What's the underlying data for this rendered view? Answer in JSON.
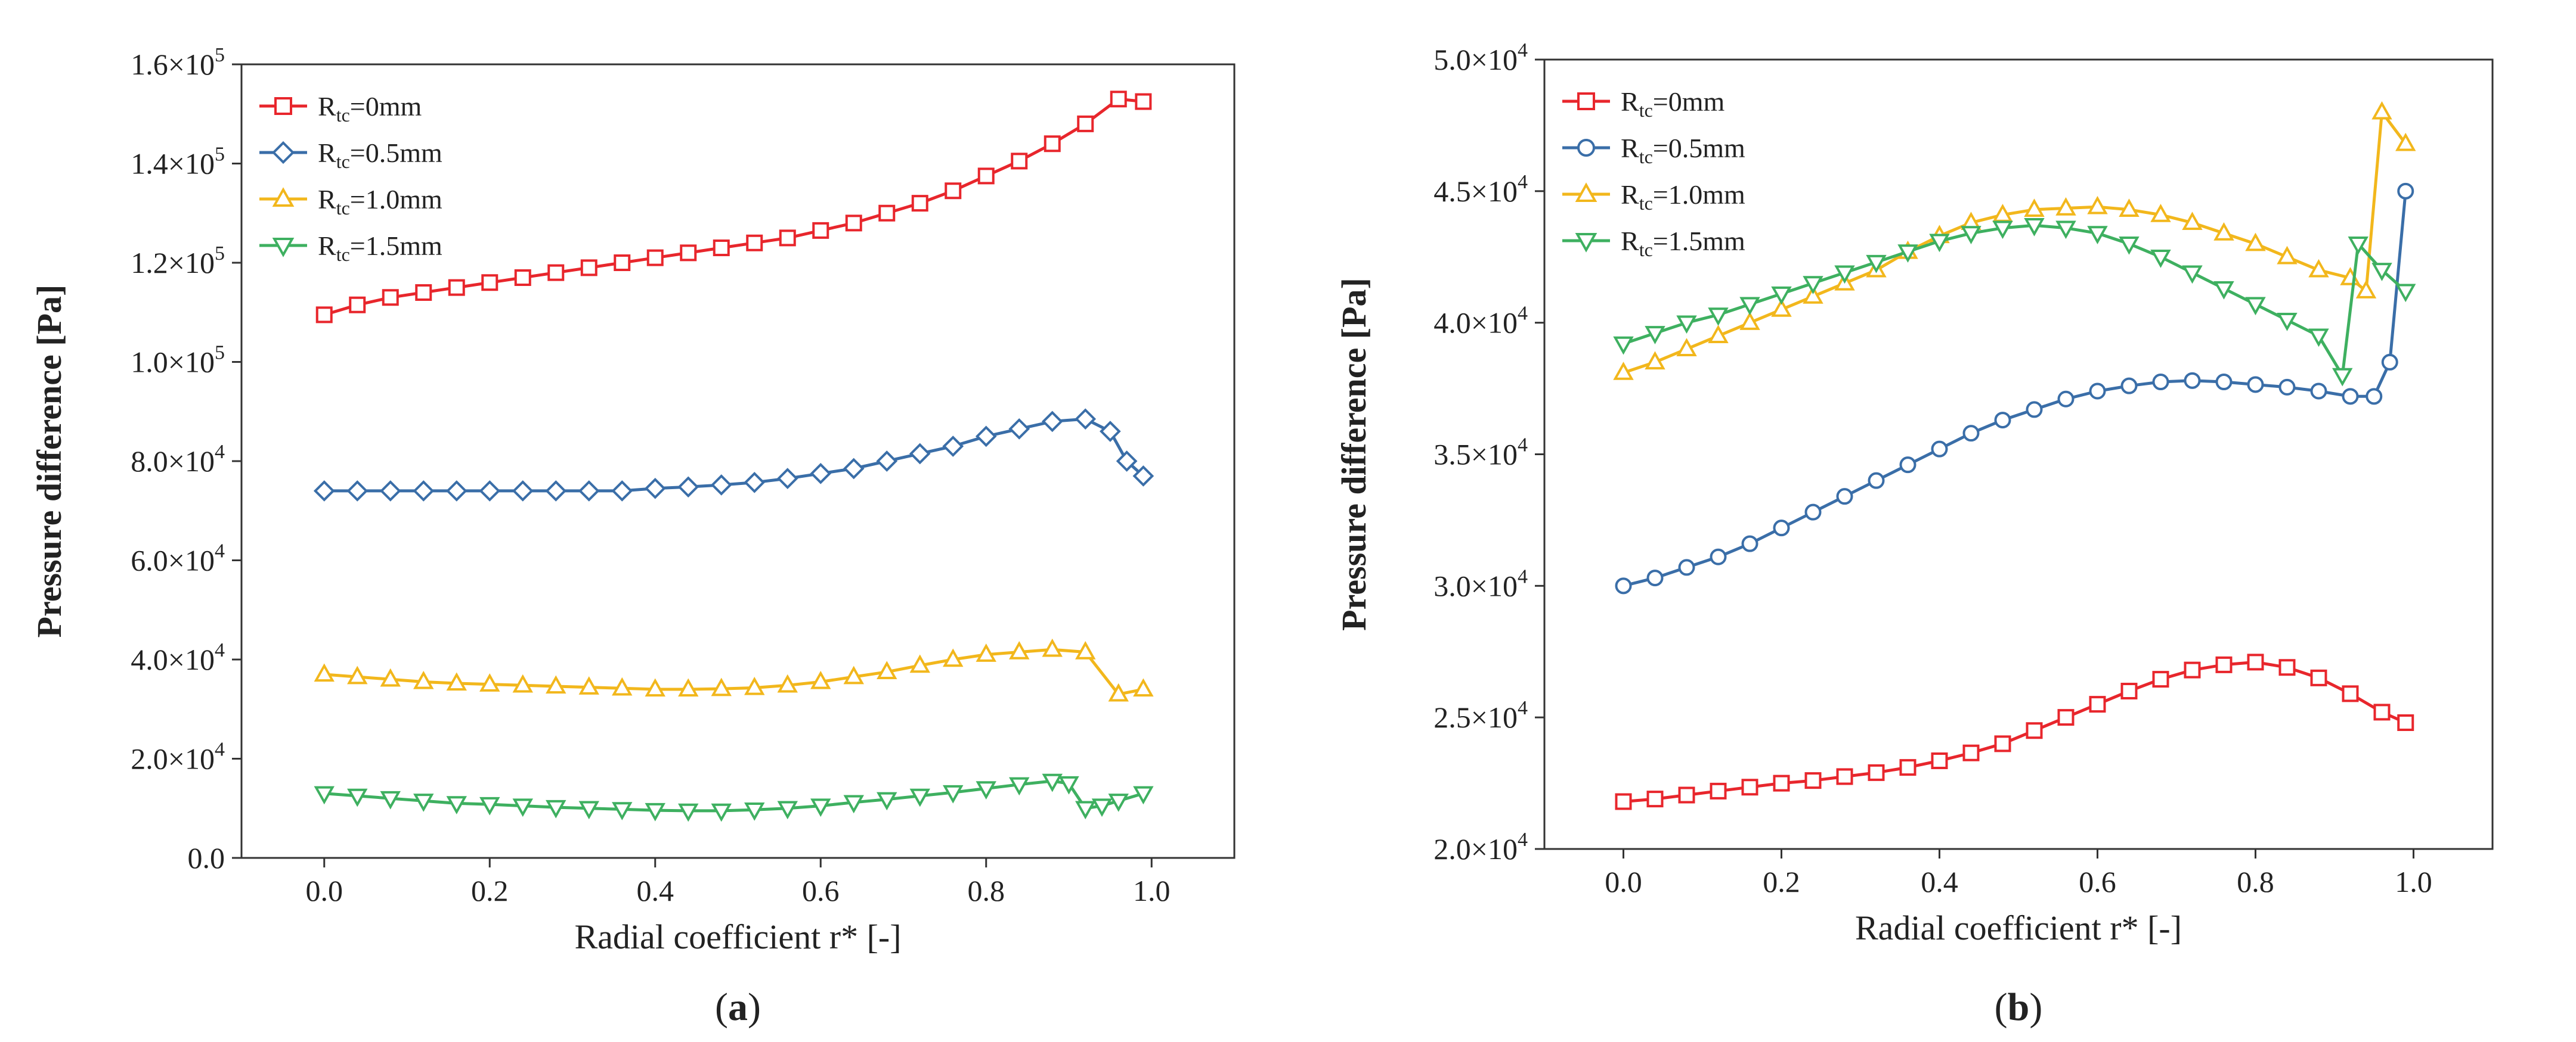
{
  "chart_data": [
    {
      "panel_label": "a",
      "type": "line",
      "xlabel": "Radial coefficient r* [-]",
      "ylabel": "Pressure difference [Pa]",
      "xlim": [
        -0.1,
        1.1
      ],
      "ylim": [
        0,
        160000
      ],
      "xticks": [
        0.0,
        0.2,
        0.4,
        0.6,
        0.8,
        1.0
      ],
      "xtick_labels": [
        "0.0",
        "0.2",
        "0.4",
        "0.6",
        "0.8",
        "1.0"
      ],
      "yticks": [
        0,
        20000,
        40000,
        60000,
        80000,
        100000,
        120000,
        140000,
        160000
      ],
      "ytick_labels": [
        {
          "text": "0.0",
          "exp": ""
        },
        {
          "text": "2.0×10",
          "exp": "4"
        },
        {
          "text": "4.0×10",
          "exp": "4"
        },
        {
          "text": "6.0×10",
          "exp": "4"
        },
        {
          "text": "8.0×10",
          "exp": "4"
        },
        {
          "text": "1.0×10",
          "exp": "5"
        },
        {
          "text": "1.2×10",
          "exp": "5"
        },
        {
          "text": "1.4×10",
          "exp": "5"
        },
        {
          "text": "1.6×10",
          "exp": "5"
        }
      ],
      "legend_position": "top-left",
      "series": [
        {
          "name": "R_tc=0mm",
          "label_main": "R",
          "label_sub": "tc",
          "label_rest": "=0mm",
          "color": "#e8262c",
          "marker": "square",
          "x": [
            0.0,
            0.04,
            0.08,
            0.12,
            0.16,
            0.2,
            0.24,
            0.28,
            0.32,
            0.36,
            0.4,
            0.44,
            0.48,
            0.52,
            0.56,
            0.6,
            0.64,
            0.68,
            0.72,
            0.76,
            0.8,
            0.84,
            0.88,
            0.92,
            0.96,
            0.99
          ],
          "values": [
            109500,
            111500,
            113000,
            114000,
            115000,
            116000,
            117000,
            118000,
            119000,
            120000,
            121000,
            122000,
            123000,
            124000,
            125000,
            126500,
            128000,
            130000,
            132000,
            134500,
            137500,
            140500,
            144000,
            148000,
            153000,
            152500
          ]
        },
        {
          "name": "R_tc=0.5mm",
          "label_main": "R",
          "label_sub": "tc",
          "label_rest": "=0.5mm",
          "color": "#3a6ea8",
          "marker": "diamond",
          "x": [
            0.0,
            0.04,
            0.08,
            0.12,
            0.16,
            0.2,
            0.24,
            0.28,
            0.32,
            0.36,
            0.4,
            0.44,
            0.48,
            0.52,
            0.56,
            0.6,
            0.64,
            0.68,
            0.72,
            0.76,
            0.8,
            0.84,
            0.88,
            0.92,
            0.95,
            0.97,
            0.99
          ],
          "values": [
            74000,
            74000,
            74000,
            74000,
            74000,
            74000,
            74000,
            74000,
            74000,
            74000,
            74500,
            74800,
            75200,
            75700,
            76500,
            77500,
            78500,
            80000,
            81500,
            83000,
            85000,
            86500,
            88000,
            88500,
            86000,
            80000,
            77000
          ]
        },
        {
          "name": "R_tc=1.0mm",
          "label_main": "R",
          "label_sub": "tc",
          "label_rest": "=1.0mm",
          "color": "#f2b71c",
          "marker": "triangle-up",
          "x": [
            0.0,
            0.04,
            0.08,
            0.12,
            0.16,
            0.2,
            0.24,
            0.28,
            0.32,
            0.36,
            0.4,
            0.44,
            0.48,
            0.52,
            0.56,
            0.6,
            0.64,
            0.68,
            0.72,
            0.76,
            0.8,
            0.84,
            0.88,
            0.92,
            0.96,
            0.99
          ],
          "values": [
            37000,
            36500,
            36000,
            35500,
            35200,
            35000,
            34800,
            34600,
            34400,
            34200,
            34000,
            34000,
            34100,
            34300,
            34800,
            35500,
            36500,
            37500,
            38800,
            40000,
            41000,
            41500,
            42000,
            41500,
            33000,
            34000
          ]
        },
        {
          "name": "R_tc=1.5mm",
          "label_main": "R",
          "label_sub": "tc",
          "label_rest": "=1.5mm",
          "color": "#3eb060",
          "marker": "triangle-down",
          "x": [
            0.0,
            0.04,
            0.08,
            0.12,
            0.16,
            0.2,
            0.24,
            0.28,
            0.32,
            0.36,
            0.4,
            0.44,
            0.48,
            0.52,
            0.56,
            0.6,
            0.64,
            0.68,
            0.72,
            0.76,
            0.8,
            0.84,
            0.88,
            0.9,
            0.92,
            0.94,
            0.96,
            0.99
          ],
          "values": [
            13000,
            12500,
            12000,
            11500,
            11000,
            10800,
            10500,
            10200,
            10000,
            9800,
            9600,
            9500,
            9500,
            9700,
            10000,
            10500,
            11200,
            11800,
            12500,
            13200,
            14000,
            14800,
            15500,
            15000,
            10000,
            10500,
            11500,
            13000
          ]
        }
      ]
    },
    {
      "panel_label": "b",
      "type": "line",
      "xlabel": "Radial coefficient r* [-]",
      "ylabel": "Pressure difference [Pa]",
      "xlim": [
        -0.1,
        1.1
      ],
      "ylim": [
        20000,
        50000
      ],
      "xticks": [
        0.0,
        0.2,
        0.4,
        0.6,
        0.8,
        1.0
      ],
      "xtick_labels": [
        "0.0",
        "0.2",
        "0.4",
        "0.6",
        "0.8",
        "1.0"
      ],
      "yticks": [
        20000,
        25000,
        30000,
        35000,
        40000,
        45000,
        50000
      ],
      "ytick_labels": [
        {
          "text": "2.0×10",
          "exp": "4"
        },
        {
          "text": "2.5×10",
          "exp": "4"
        },
        {
          "text": "3.0×10",
          "exp": "4"
        },
        {
          "text": "3.5×10",
          "exp": "4"
        },
        {
          "text": "4.0×10",
          "exp": "4"
        },
        {
          "text": "4.5×10",
          "exp": "4"
        },
        {
          "text": "5.0×10",
          "exp": "4"
        }
      ],
      "legend_position": "top-left",
      "series": [
        {
          "name": "R_tc=0mm",
          "label_main": "R",
          "label_sub": "tc",
          "label_rest": "=0mm",
          "color": "#e8262c",
          "marker": "square",
          "x": [
            0.0,
            0.04,
            0.08,
            0.12,
            0.16,
            0.2,
            0.24,
            0.28,
            0.32,
            0.36,
            0.4,
            0.44,
            0.48,
            0.52,
            0.56,
            0.6,
            0.64,
            0.68,
            0.72,
            0.76,
            0.8,
            0.84,
            0.88,
            0.92,
            0.96,
            0.99
          ],
          "values": [
            21800,
            21900,
            22050,
            22200,
            22350,
            22500,
            22600,
            22750,
            22900,
            23100,
            23350,
            23650,
            24000,
            24500,
            25000,
            25500,
            26000,
            26450,
            26800,
            27000,
            27100,
            26900,
            26500,
            25900,
            25200,
            24800
          ]
        },
        {
          "name": "R_tc=0.5mm",
          "label_main": "R",
          "label_sub": "tc",
          "label_rest": "=0.5mm",
          "color": "#3a6ea8",
          "marker": "circle",
          "x": [
            0.0,
            0.04,
            0.08,
            0.12,
            0.16,
            0.2,
            0.24,
            0.28,
            0.32,
            0.36,
            0.4,
            0.44,
            0.48,
            0.52,
            0.56,
            0.6,
            0.64,
            0.68,
            0.72,
            0.76,
            0.8,
            0.84,
            0.88,
            0.92,
            0.95,
            0.97,
            0.99
          ],
          "values": [
            30000,
            30300,
            30700,
            31100,
            31600,
            32200,
            32800,
            33400,
            34000,
            34600,
            35200,
            35800,
            36300,
            36700,
            37100,
            37400,
            37600,
            37750,
            37800,
            37750,
            37650,
            37550,
            37400,
            37200,
            37200,
            38500,
            45000
          ]
        },
        {
          "name": "R_tc=1.0mm",
          "label_main": "R",
          "label_sub": "tc",
          "label_rest": "=1.0mm",
          "color": "#f2b71c",
          "marker": "triangle-up",
          "x": [
            0.0,
            0.04,
            0.08,
            0.12,
            0.16,
            0.2,
            0.24,
            0.28,
            0.32,
            0.36,
            0.4,
            0.44,
            0.48,
            0.52,
            0.56,
            0.6,
            0.64,
            0.68,
            0.72,
            0.76,
            0.8,
            0.84,
            0.88,
            0.92,
            0.94,
            0.96,
            0.99
          ],
          "values": [
            38100,
            38500,
            39000,
            39500,
            40000,
            40500,
            41000,
            41500,
            42000,
            42700,
            43300,
            43800,
            44100,
            44300,
            44350,
            44400,
            44300,
            44100,
            43800,
            43400,
            43000,
            42500,
            42000,
            41700,
            41200,
            48000,
            46800
          ]
        },
        {
          "name": "R_tc=1.5mm",
          "label_main": "R",
          "label_sub": "tc",
          "label_rest": "=1.5mm",
          "color": "#3eb060",
          "marker": "triangle-down",
          "x": [
            0.0,
            0.04,
            0.08,
            0.12,
            0.16,
            0.2,
            0.24,
            0.28,
            0.32,
            0.36,
            0.4,
            0.44,
            0.48,
            0.52,
            0.56,
            0.6,
            0.64,
            0.68,
            0.72,
            0.76,
            0.8,
            0.84,
            0.88,
            0.91,
            0.93,
            0.96,
            0.99
          ],
          "values": [
            39200,
            39600,
            40000,
            40300,
            40700,
            41100,
            41500,
            41900,
            42300,
            42700,
            43100,
            43400,
            43600,
            43700,
            43600,
            43400,
            43000,
            42500,
            41900,
            41300,
            40700,
            40100,
            39500,
            38000,
            43000,
            42000,
            41200
          ]
        }
      ]
    }
  ]
}
